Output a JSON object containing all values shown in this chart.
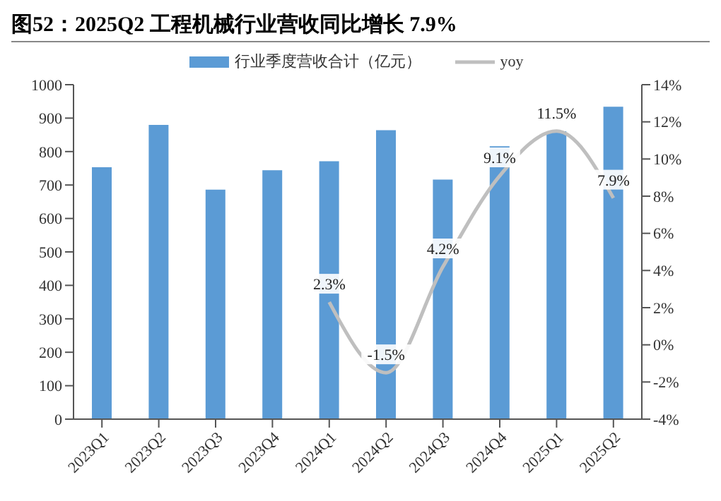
{
  "chart_data": {
    "type": "bar",
    "title": "图52：2025Q2 工程机械行业营收同比增长 7.9%",
    "categories": [
      "2023Q1",
      "2023Q2",
      "2023Q3",
      "2023Q4",
      "2024Q1",
      "2024Q2",
      "2024Q3",
      "2024Q4",
      "2025Q1",
      "2025Q2"
    ],
    "series": [
      {
        "name": "行业季度营收合计（亿元）",
        "color": "#5b9bd5",
        "values": [
          753,
          880,
          686,
          744,
          771,
          864,
          716,
          816,
          861,
          934
        ]
      },
      {
        "name": "yoy",
        "type": "line",
        "axis": "y2",
        "color": "#bfbfbf",
        "values": [
          null,
          null,
          null,
          null,
          2.3,
          -1.5,
          4.2,
          9.1,
          11.5,
          7.9
        ],
        "value_labels": [
          null,
          null,
          null,
          null,
          "2.3%",
          "-1.5%",
          "4.2%",
          "9.1%",
          "11.5%",
          "7.9%"
        ]
      }
    ],
    "ylim": [
      0,
      1000
    ],
    "yticks": [
      0,
      100,
      200,
      300,
      400,
      500,
      600,
      700,
      800,
      900,
      1000
    ],
    "y2lim": [
      -4,
      14
    ],
    "y2ticks": [
      {
        "value": -4,
        "label": "-4%"
      },
      {
        "value": -2,
        "label": "-2%"
      },
      {
        "value": 0,
        "label": "0%"
      },
      {
        "value": 2,
        "label": "2%"
      },
      {
        "value": 4,
        "label": "4%"
      },
      {
        "value": 6,
        "label": "6%"
      },
      {
        "value": 8,
        "label": "8%"
      },
      {
        "value": 10,
        "label": "10%"
      },
      {
        "value": 12,
        "label": "12%"
      },
      {
        "value": 14,
        "label": "14%"
      }
    ],
    "grid": false,
    "legend": "top",
    "marker": "none"
  }
}
